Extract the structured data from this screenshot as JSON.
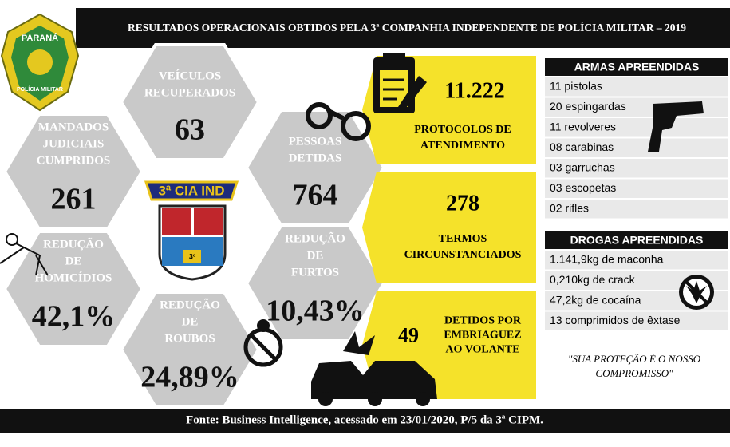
{
  "header": {
    "title": "RESULTADOS OPERACIONAIS OBTIDOS PELA 3ª COMPANHIA INDEPENDENTE DE POLÍCIA MILITAR – 2019"
  },
  "badge": {
    "top": "PARANÁ",
    "bottom": "POLÍCIA MILITAR"
  },
  "emblem": {
    "text": "3ª CIA IND",
    "shield": "3º"
  },
  "hexagons": [
    {
      "label": [
        "VEÍCULOS",
        "RECUPERADOS"
      ],
      "value": "63"
    },
    {
      "label": [
        "MANDADOS",
        "JUDICIAIS",
        "CUMPRIDOS"
      ],
      "value": "261"
    },
    {
      "label": [
        "PESSOAS",
        "DETIDAS"
      ],
      "value": "764"
    },
    {
      "label": [
        "REDUÇÃO",
        "DE",
        "HOMICÍDIOS"
      ],
      "value": "42,1%"
    },
    {
      "label": [
        "REDUÇÃO",
        "DE",
        "FURTOS"
      ],
      "value": "10,43%"
    },
    {
      "label": [
        "REDUÇÃO",
        "DE",
        "ROUBOS"
      ],
      "value": "24,89%"
    }
  ],
  "boxes": [
    {
      "value": "11.222",
      "label": [
        "PROTOCOLOS DE",
        "ATENDIMENTO"
      ]
    },
    {
      "value": "278",
      "label": [
        "TERMOS",
        "CIRCUNSTANCIADOS"
      ]
    },
    {
      "value": "49",
      "label": [
        "DETIDOS POR",
        "EMBRIAGUEZ",
        "AO VOLANTE"
      ]
    }
  ],
  "weapons": {
    "title": "ARMAS APREENDIDAS",
    "items": [
      "11 pistolas",
      "20 espingardas",
      "11 revolveres",
      "08 carabinas",
      "03 garruchas",
      "03 escopetas",
      "02 rifles"
    ]
  },
  "drugs": {
    "title": "DROGAS APREENDIDAS",
    "items": [
      "1.141,9kg de maconha",
      "0,210kg de crack",
      "47,2kg de cocaína",
      "13 comprimidos de êxtase"
    ]
  },
  "quote": [
    "\"SUA PROTEÇÃO É O NOSSO",
    "COMPROMISSO\""
  ],
  "footer": {
    "text": "Fonte: Business Intelligence, acessado em 23/01/2020, P/5 da 3ª CIPM."
  }
}
